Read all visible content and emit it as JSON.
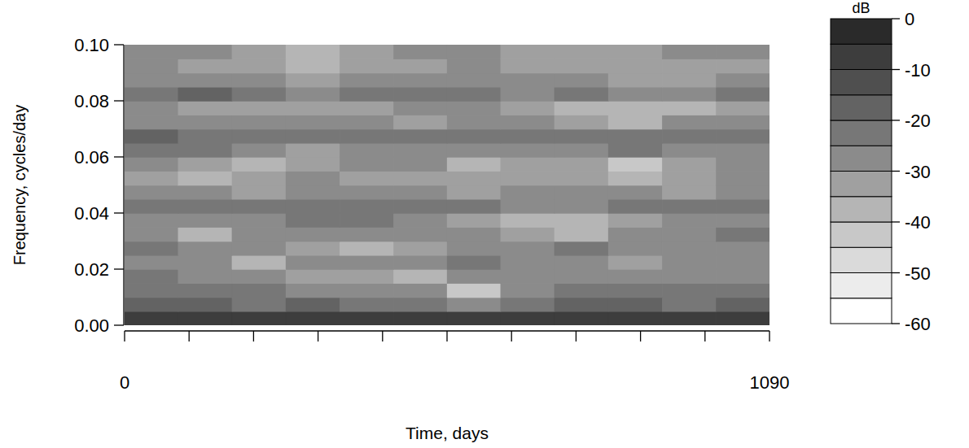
{
  "chart_data": {
    "type": "heatmap",
    "xlabel": "Time, days",
    "ylabel": "Frequency, cycles/day",
    "xlim": [
      0,
      1090
    ],
    "ylim": [
      0,
      0.1
    ],
    "xticks": [
      0,
      {
        "value": 109,
        "label": null
      },
      {
        "value": 218,
        "label": null
      },
      {
        "value": 327,
        "label": null
      },
      {
        "value": 436,
        "label": null
      },
      {
        "value": 545,
        "label": null
      },
      {
        "value": 654,
        "label": null
      },
      {
        "value": 763,
        "label": null
      },
      {
        "value": 872,
        "label": null
      },
      {
        "value": 981,
        "label": null
      },
      1090
    ],
    "yticks": [
      {
        "value": 0,
        "label": "0.00"
      },
      {
        "value": 0.02,
        "label": "0.02"
      },
      {
        "value": 0.04,
        "label": "0.04"
      },
      {
        "value": 0.06,
        "label": "0.06"
      },
      {
        "value": 0.08,
        "label": "0.08"
      },
      {
        "value": 0.1,
        "label": "0.10"
      }
    ],
    "x": [
      45,
      136,
      227,
      318,
      409,
      500,
      590,
      681,
      772,
      863,
      954,
      1045
    ],
    "y": [
      0.0025,
      0.0075,
      0.0125,
      0.0175,
      0.0225,
      0.0275,
      0.0325,
      0.0375,
      0.0425,
      0.0475,
      0.0525,
      0.0575,
      0.0625,
      0.0675,
      0.0725,
      0.0775,
      0.0825,
      0.0875,
      0.0925,
      0.0975
    ],
    "cells": [
      [
        -8,
        -9,
        -8,
        -10,
        -9,
        -8,
        -9,
        -10,
        -8,
        -9,
        -8,
        -7
      ],
      [
        -18,
        -20,
        -22,
        -20,
        -21,
        -24,
        -30,
        -22,
        -20,
        -19,
        -21,
        -20
      ],
      [
        -22,
        -25,
        -24,
        -26,
        -28,
        -30,
        -42,
        -28,
        -25,
        -24,
        -23,
        -22
      ],
      [
        -25,
        -28,
        -30,
        -32,
        -35,
        -38,
        -30,
        -27,
        -26,
        -28,
        -30,
        -27
      ],
      [
        -27,
        -30,
        -38,
        -30,
        -28,
        -26,
        -25,
        -27,
        -30,
        -33,
        -28,
        -26
      ],
      [
        -24,
        -26,
        -28,
        -33,
        -36,
        -32,
        -28,
        -26,
        -24,
        -26,
        -30,
        -28
      ],
      [
        -30,
        -40,
        -30,
        -27,
        -26,
        -28,
        -30,
        -33,
        -36,
        -30,
        -27,
        -25
      ],
      [
        -26,
        -28,
        -26,
        -24,
        -25,
        -27,
        -32,
        -38,
        -40,
        -34,
        -30,
        -27
      ],
      [
        -22,
        -24,
        -23,
        -22,
        -24,
        -23,
        -25,
        -27,
        -26,
        -24,
        -25,
        -23
      ],
      [
        -28,
        -30,
        -32,
        -30,
        -28,
        -29,
        -31,
        -30,
        -28,
        -30,
        -32,
        -29
      ],
      [
        -32,
        -36,
        -33,
        -30,
        -31,
        -34,
        -35,
        -33,
        -32,
        -36,
        -34,
        -30
      ],
      [
        -27,
        -33,
        -36,
        -35,
        -30,
        -28,
        -36,
        -34,
        -32,
        -45,
        -33,
        -30
      ],
      [
        -24,
        -25,
        -30,
        -32,
        -28,
        -26,
        -27,
        -28,
        -26,
        -25,
        -27,
        -30
      ],
      [
        -20,
        -22,
        -24,
        -23,
        -25,
        -24,
        -22,
        -23,
        -24,
        -22,
        -21,
        -23
      ],
      [
        -28,
        -30,
        -27,
        -26,
        -30,
        -32,
        -30,
        -28,
        -34,
        -36,
        -30,
        -27
      ],
      [
        -30,
        -33,
        -35,
        -34,
        -31,
        -30,
        -28,
        -32,
        -36,
        -40,
        -38,
        -32
      ],
      [
        -22,
        -20,
        -24,
        -26,
        -25,
        -23,
        -24,
        -26,
        -25,
        -27,
        -26,
        -24
      ],
      [
        -26,
        -28,
        -30,
        -32,
        -30,
        -27,
        -28,
        -30,
        -29,
        -31,
        -33,
        -30
      ],
      [
        -30,
        -32,
        -34,
        -36,
        -35,
        -32,
        -30,
        -33,
        -34,
        -32,
        -35,
        -33
      ],
      [
        -27,
        -29,
        -35,
        -38,
        -33,
        -30,
        -29,
        -31,
        -33,
        -35,
        -30,
        -28
      ]
    ],
    "colorbar": {
      "title": "dB",
      "lim": [
        -60,
        0
      ],
      "ticks": [
        0,
        -10,
        -20,
        -30,
        -40,
        -50,
        -60
      ],
      "levels": [
        -60,
        -55,
        -50,
        -45,
        -40,
        -35,
        -30,
        -25,
        -20,
        -15,
        -10,
        -5,
        0
      ],
      "colors": [
        "#ffffff",
        "#ececec",
        "#dadada",
        "#c8c8c8",
        "#b5b5b5",
        "#a0a0a0",
        "#8b8b8b",
        "#777777",
        "#636363",
        "#4f4f4f",
        "#3d3d3d",
        "#2a2a2a"
      ]
    }
  }
}
